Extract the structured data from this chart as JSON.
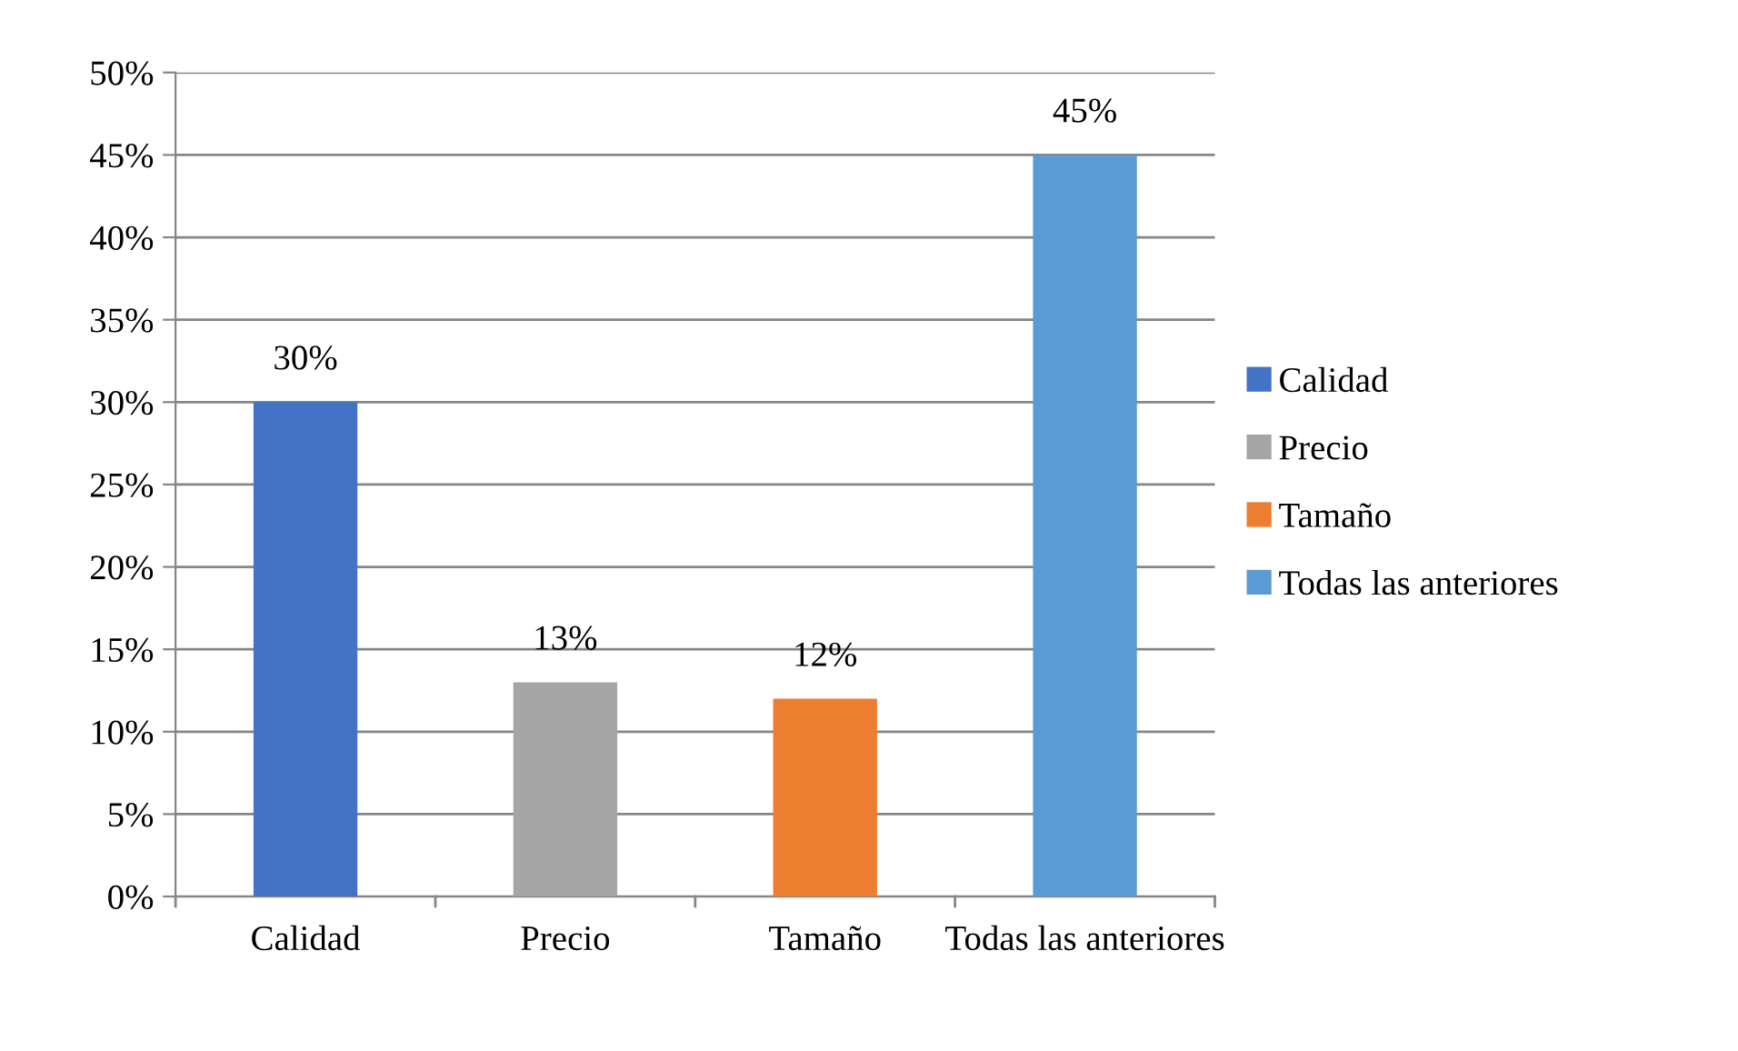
{
  "chart_data": {
    "type": "bar",
    "categories": [
      "Calidad",
      "Precio",
      "Tamaño",
      "Todas las anteriores"
    ],
    "stacked": true,
    "series": [
      {
        "name": "Calidad",
        "color": "#4472c4",
        "values": [
          30,
          null,
          null,
          null
        ],
        "value_labels": [
          "30%",
          null,
          null,
          null
        ]
      },
      {
        "name": "Precio",
        "color": "#a5a5a5",
        "values": [
          null,
          13,
          null,
          null
        ],
        "value_labels": [
          null,
          "13%",
          null,
          null
        ]
      },
      {
        "name": "Tamaño",
        "color": "#ed7d31",
        "values": [
          null,
          null,
          12,
          null
        ],
        "value_labels": [
          null,
          null,
          "12%",
          null
        ]
      },
      {
        "name": "Todas las anteriores",
        "color": "#5b9bd5",
        "values": [
          null,
          null,
          null,
          45
        ],
        "value_labels": [
          null,
          null,
          null,
          "45%"
        ]
      }
    ],
    "ylim": [
      0,
      50
    ],
    "yticks": [
      {
        "value": 0,
        "label": "0%"
      },
      {
        "value": 5,
        "label": "5%"
      },
      {
        "value": 10,
        "label": "10%"
      },
      {
        "value": 15,
        "label": "15%"
      },
      {
        "value": 20,
        "label": "20%"
      },
      {
        "value": 25,
        "label": "25%"
      },
      {
        "value": 30,
        "label": "30%"
      },
      {
        "value": 35,
        "label": "35%"
      },
      {
        "value": 40,
        "label": "40%"
      },
      {
        "value": 45,
        "label": "45%"
      },
      {
        "value": 50,
        "label": "50%"
      }
    ],
    "grid": "y",
    "legend": "right"
  }
}
